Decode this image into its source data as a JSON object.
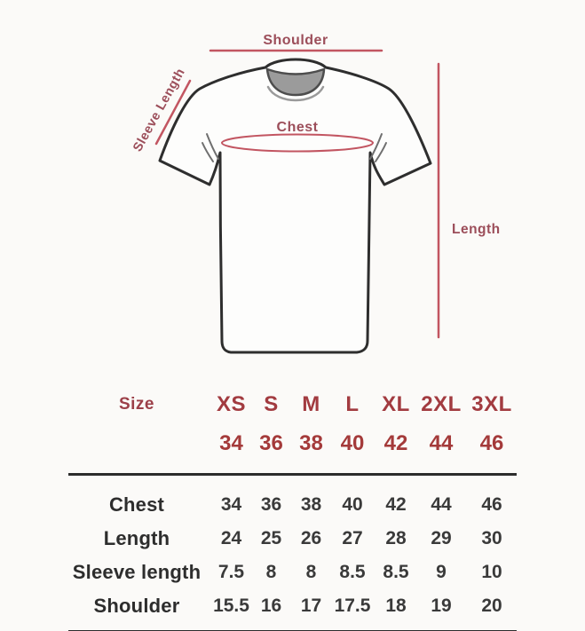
{
  "diagram": {
    "labels": {
      "shoulder": "Shoulder",
      "sleeve_length": "Sleeve Length",
      "chest": "Chest",
      "length": "Length"
    },
    "colors": {
      "annotation_line": "#c25561",
      "annotation_text": "#9c4e5a",
      "shirt_outline": "#2e2e2e",
      "collar_fill": "#9b9b9b",
      "background": "#fbfaf8"
    }
  },
  "size_table": {
    "header_label": "Size",
    "sizes": [
      "XS",
      "S",
      "M",
      "L",
      "XL",
      "2XL",
      "3XL"
    ],
    "size_numbers": [
      "34",
      "36",
      "38",
      "40",
      "42",
      "44",
      "46"
    ],
    "rows": [
      {
        "label": "Chest",
        "values": [
          "34",
          "36",
          "38",
          "40",
          "42",
          "44",
          "46"
        ]
      },
      {
        "label": "Length",
        "values": [
          "24",
          "25",
          "26",
          "27",
          "28",
          "29",
          "30"
        ]
      },
      {
        "label": "Sleeve length",
        "values": [
          "7.5",
          "8",
          "8",
          "8.5",
          "8.5",
          "9",
          "10"
        ]
      },
      {
        "label": "Shoulder",
        "values": [
          "15.5",
          "16",
          "17",
          "17.5",
          "18",
          "19",
          "20"
        ]
      }
    ],
    "colors": {
      "header_text": "#a23b40",
      "header_numbers": "#a43a3a",
      "row_label": "#2d2d2d",
      "row_value": "#3a3a3a",
      "rule": "#2c2c2c"
    }
  }
}
